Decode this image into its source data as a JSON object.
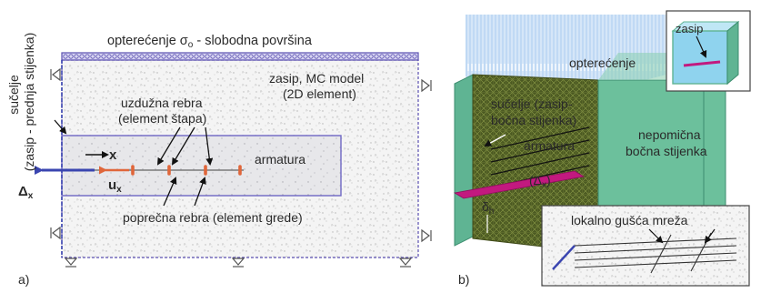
{
  "panel_a": {
    "load_label": "opterećenje σ",
    "load_subscript": "o",
    "load_suffix": " - slobodna površina",
    "interface_line1": "sučelje",
    "interface_line2": "(zasip - prednja stijenka)",
    "backfill_line1": "zasip, MC model",
    "backfill_line2": "(2D element)",
    "long_ribs_line1": "uzdužna rebra",
    "long_ribs_line2": "(element štapa)",
    "reinforcement": "armatura",
    "x_axis": "x",
    "ux_main": "u",
    "ux_sub": "x",
    "delta_main": "Δ",
    "delta_sub": "x",
    "transverse_ribs": "poprečna rebra (element grede)",
    "panel_label": "a)"
  },
  "panel_b": {
    "load_label": "opterećenje",
    "interface_line1": "sučelje (zasip-",
    "interface_line2": "bočna stijenka)",
    "reinforcement": "armatura",
    "delta_main": "(Δ",
    "delta_sub": "x",
    "delta_close": ")",
    "fixed_wall_line1": "nepomična",
    "fixed_wall_line2": "bočna stijenka",
    "delta_h_main": "δ",
    "delta_h_sub": "h",
    "inset_label": "zasip",
    "mesh_label": "lokalno gušća mreža",
    "panel_label": "b)"
  },
  "colors": {
    "frame_blue": "#5a4fb0",
    "rib_orange": "#e0663a",
    "pull_blue": "#3a45b0",
    "rebar_magenta": "#c2197f",
    "wall_green": "#5fb493",
    "mesh_olive": "#5d6a2a",
    "load_blue": "#6ea8e8",
    "inset_cyan": "#8fd3ee"
  }
}
